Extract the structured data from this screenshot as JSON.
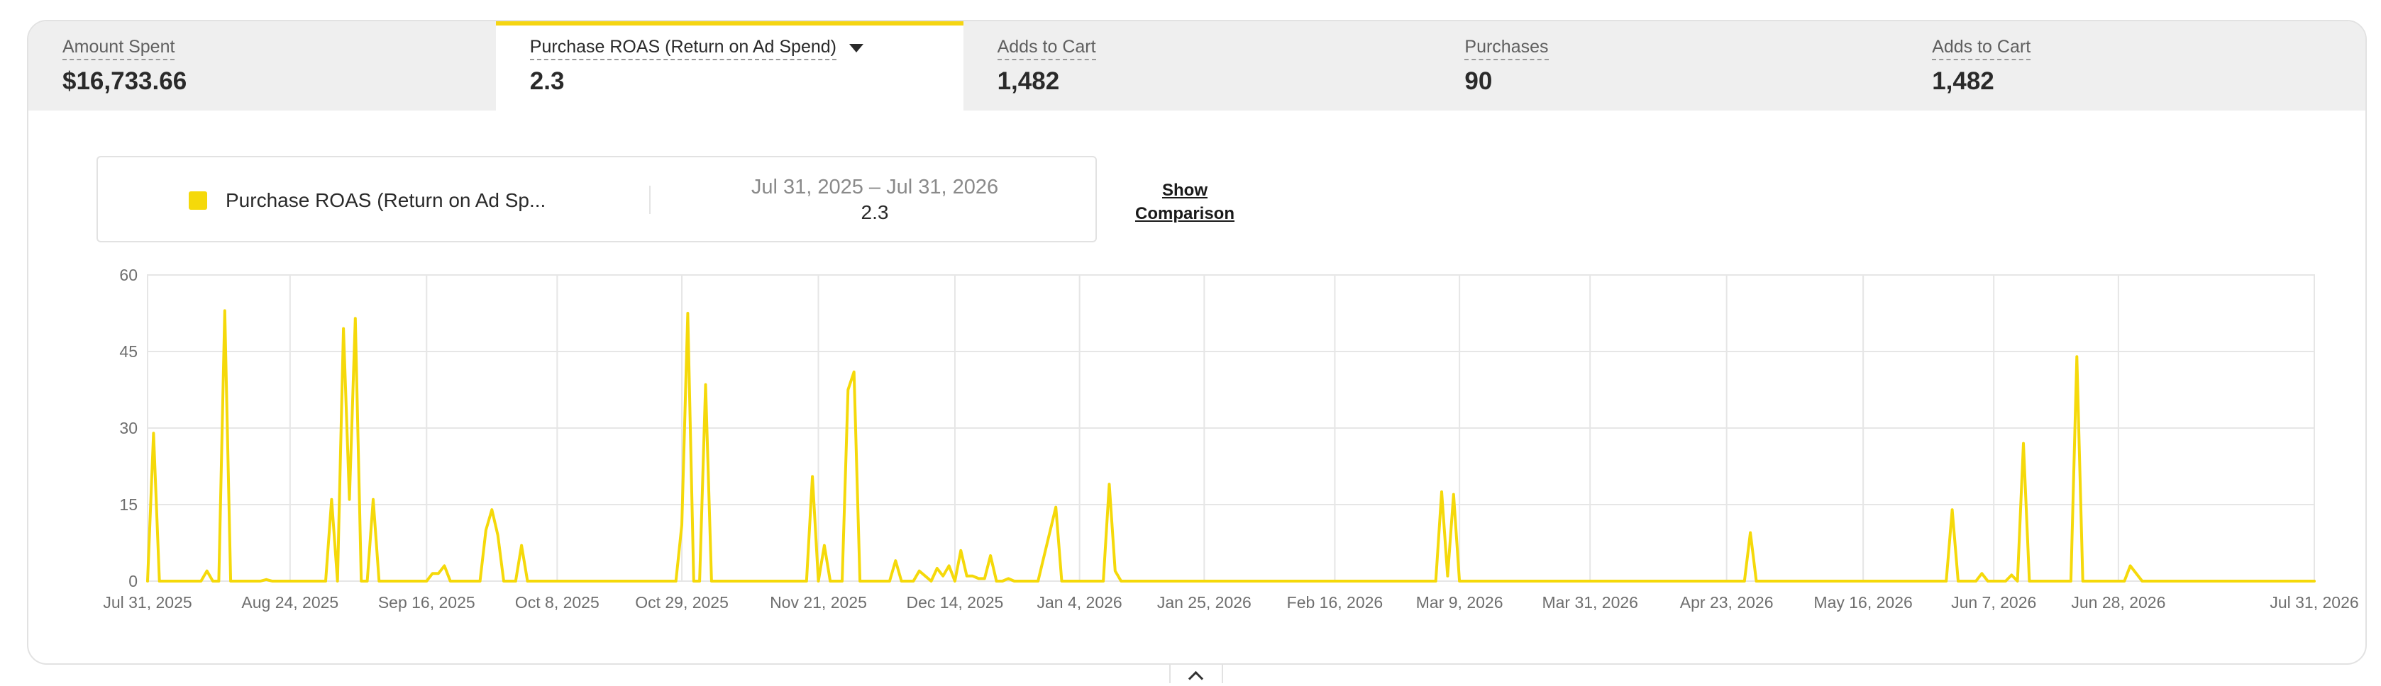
{
  "tabs": [
    {
      "label": "Amount Spent",
      "value": "$16,733.66",
      "active": false
    },
    {
      "label": "Purchase ROAS (Return on Ad Spend)",
      "value": "2.3",
      "active": true
    },
    {
      "label": "Adds to Cart",
      "value": "1,482",
      "active": false
    },
    {
      "label": "Purchases",
      "value": "90",
      "active": false
    },
    {
      "label": "Adds to Cart",
      "value": "1,482",
      "active": false
    }
  ],
  "legend": {
    "series_name": "Purchase ROAS (Return on Ad Sp...",
    "date_range": "Jul 31, 2025 – Jul 31, 2026",
    "value": "2.3"
  },
  "show_comparison_label": "Show Comparison",
  "colors": {
    "series": "#f5d90a",
    "active_tab_accent": "#f5d512",
    "grid": "#e6e6e6"
  },
  "icons": {
    "tab_dropdown": "caret-down-icon",
    "collapse": "chevron-up-icon"
  },
  "chart_data": {
    "type": "line",
    "x_start": "2025-07-31",
    "ylim": [
      0,
      60
    ],
    "y_ticks": [
      0,
      15,
      30,
      45,
      60
    ],
    "x_tick_labels": [
      "Jul 31, 2025",
      "Aug 24, 2025",
      "Sep 16, 2025",
      "Oct 8, 2025",
      "Oct 29, 2025",
      "Nov 21, 2025",
      "Dec 14, 2025",
      "Jan 4, 2026",
      "Jan 25, 2026",
      "Feb 16, 2026",
      "Mar 9, 2026",
      "Mar 31, 2026",
      "Apr 23, 2026",
      "May 16, 2026",
      "Jun 7, 2026",
      "Jun 28, 2026",
      "Jul 31, 2026"
    ],
    "x_ticks": [
      "2025-07-31",
      "2025-08-24",
      "2025-09-16",
      "2025-10-08",
      "2025-10-29",
      "2025-11-21",
      "2025-12-14",
      "2026-01-04",
      "2026-01-25",
      "2026-02-16",
      "2026-03-09",
      "2026-03-31",
      "2026-04-23",
      "2026-05-16",
      "2026-06-07",
      "2026-06-28",
      "2026-07-31"
    ],
    "grid": true,
    "series": [
      {
        "name": "Purchase ROAS (Return on Ad Spend)",
        "points": [
          [
            "2025-07-31",
            0
          ],
          [
            "2025-08-01",
            29
          ],
          [
            "2025-08-02",
            0
          ],
          [
            "2025-08-09",
            0
          ],
          [
            "2025-08-10",
            2
          ],
          [
            "2025-08-11",
            0
          ],
          [
            "2025-08-12",
            0
          ],
          [
            "2025-08-13",
            53
          ],
          [
            "2025-08-14",
            0
          ],
          [
            "2025-08-19",
            0
          ],
          [
            "2025-08-20",
            0.3
          ],
          [
            "2025-08-21",
            0
          ],
          [
            "2025-08-30",
            0
          ],
          [
            "2025-08-31",
            16
          ],
          [
            "2025-09-01",
            0
          ],
          [
            "2025-09-02",
            49.5
          ],
          [
            "2025-09-03",
            16
          ],
          [
            "2025-09-04",
            51.5
          ],
          [
            "2025-09-05",
            0
          ],
          [
            "2025-09-06",
            0
          ],
          [
            "2025-09-07",
            16
          ],
          [
            "2025-09-08",
            0
          ],
          [
            "2025-09-16",
            0
          ],
          [
            "2025-09-17",
            1.5
          ],
          [
            "2025-09-18",
            1.5
          ],
          [
            "2025-09-19",
            3
          ],
          [
            "2025-09-20",
            0
          ],
          [
            "2025-09-25",
            0
          ],
          [
            "2025-09-26",
            10
          ],
          [
            "2025-09-27",
            14
          ],
          [
            "2025-09-28",
            9
          ],
          [
            "2025-09-29",
            0
          ],
          [
            "2025-10-01",
            0
          ],
          [
            "2025-10-02",
            7
          ],
          [
            "2025-10-03",
            0
          ],
          [
            "2025-10-28",
            0
          ],
          [
            "2025-10-29",
            11
          ],
          [
            "2025-10-30",
            52.5
          ],
          [
            "2025-10-31",
            0
          ],
          [
            "2025-11-01",
            0
          ],
          [
            "2025-11-02",
            38.5
          ],
          [
            "2025-11-03",
            0
          ],
          [
            "2025-11-19",
            0
          ],
          [
            "2025-11-20",
            20.5
          ],
          [
            "2025-11-21",
            0
          ],
          [
            "2025-11-22",
            7
          ],
          [
            "2025-11-23",
            0
          ],
          [
            "2025-11-25",
            0
          ],
          [
            "2025-11-26",
            37.5
          ],
          [
            "2025-11-27",
            41
          ],
          [
            "2025-11-28",
            0
          ],
          [
            "2025-12-03",
            0
          ],
          [
            "2025-12-04",
            4
          ],
          [
            "2025-12-05",
            0
          ],
          [
            "2025-12-07",
            0
          ],
          [
            "2025-12-08",
            2
          ],
          [
            "2025-12-09",
            1
          ],
          [
            "2025-12-10",
            0
          ],
          [
            "2025-12-11",
            2.5
          ],
          [
            "2025-12-12",
            1
          ],
          [
            "2025-12-13",
            3
          ],
          [
            "2025-12-14",
            0
          ],
          [
            "2025-12-15",
            6
          ],
          [
            "2025-12-16",
            1
          ],
          [
            "2025-12-17",
            1
          ],
          [
            "2025-12-18",
            0.5
          ],
          [
            "2025-12-19",
            0.5
          ],
          [
            "2025-12-20",
            5
          ],
          [
            "2025-12-21",
            0
          ],
          [
            "2025-12-22",
            0
          ],
          [
            "2025-12-23",
            0.5
          ],
          [
            "2025-12-24",
            0
          ],
          [
            "2025-12-28",
            0
          ],
          [
            "2025-12-31",
            14.5
          ],
          [
            "2026-01-01",
            0
          ],
          [
            "2026-01-08",
            0
          ],
          [
            "2026-01-09",
            19
          ],
          [
            "2026-01-10",
            2
          ],
          [
            "2026-01-11",
            0
          ],
          [
            "2026-03-05",
            0
          ],
          [
            "2026-03-06",
            17.5
          ],
          [
            "2026-03-07",
            1
          ],
          [
            "2026-03-08",
            17
          ],
          [
            "2026-03-09",
            0
          ],
          [
            "2026-04-26",
            0
          ],
          [
            "2026-04-27",
            9.5
          ],
          [
            "2026-04-28",
            0
          ],
          [
            "2026-05-30",
            0
          ],
          [
            "2026-05-31",
            14
          ],
          [
            "2026-06-01",
            0
          ],
          [
            "2026-06-04",
            0
          ],
          [
            "2026-06-05",
            1.5
          ],
          [
            "2026-06-06",
            0
          ],
          [
            "2026-06-09",
            0
          ],
          [
            "2026-06-10",
            1.2
          ],
          [
            "2026-06-11",
            0
          ],
          [
            "2026-06-12",
            27
          ],
          [
            "2026-06-13",
            0
          ],
          [
            "2026-06-20",
            0
          ],
          [
            "2026-06-21",
            44
          ],
          [
            "2026-06-22",
            0
          ],
          [
            "2026-06-29",
            0
          ],
          [
            "2026-06-30",
            3
          ],
          [
            "2026-07-02",
            0
          ],
          [
            "2026-07-31",
            0
          ]
        ]
      }
    ]
  }
}
